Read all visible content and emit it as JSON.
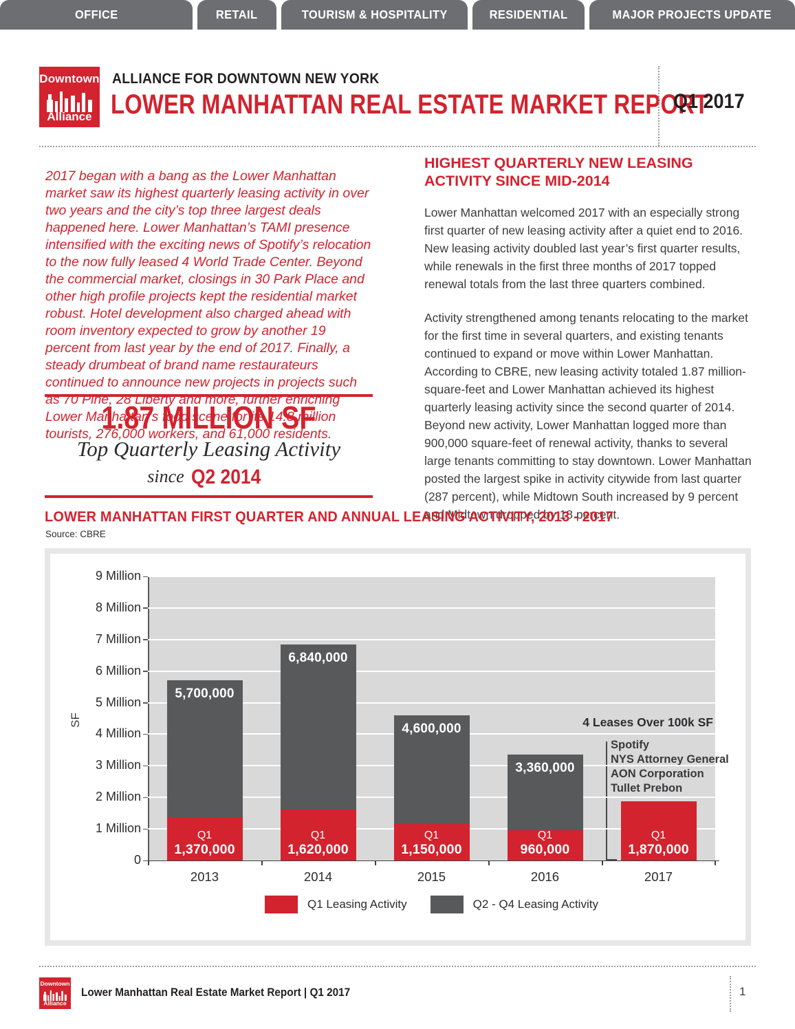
{
  "colors": {
    "brand_red": "#d2232e",
    "bar_gray": "#58595b",
    "nav_gray": "#6d6e71",
    "plot_background": "#d9d9d9"
  },
  "nav": {
    "tabs": [
      {
        "label": "OFFICE"
      },
      {
        "label": "RETAIL"
      },
      {
        "label": "TOURISM & HOSPITALITY"
      },
      {
        "label": "RESIDENTIAL"
      },
      {
        "label": "MAJOR PROJECTS UPDATE"
      }
    ]
  },
  "header": {
    "logo": {
      "line1": "Downtown",
      "line2": "Alliance"
    },
    "org": "ALLIANCE FOR DOWNTOWN NEW YORK",
    "title": "LOWER MANHATTAN REAL ESTATE MARKET REPORT",
    "edition": "Q1 2017"
  },
  "intro": {
    "text": "2017 began with a bang as the Lower Manhattan market saw its highest quarterly leasing activity in over two years and the city’s top three largest deals happened here. Lower Manhattan’s TAMI presence intensified with the exciting news of Spotify’s relocation to the now fully leased 4 World Trade Center. Beyond the commercial market, closings in 30 Park Place and other high profile projects kept the residential market robust. Hotel development also charged ahead with room inventory expected to grow by another 19 percent from last year by the end of 2017. Finally, a steady drumbeat of brand name restaurateurs continued to announce new projects in projects such as 70 Pine, 28 Liberty and more, further enriching Lower Manhattan’s food scene for its 14.8 million tourists, 276,000 workers, and 61,000 residents."
  },
  "callout": {
    "headline": "1.87 MILLION SF",
    "subline": "Top Quarterly Leasing Activity",
    "since_prefix": "since",
    "since_value": "Q2 2014"
  },
  "article": {
    "heading": "HIGHEST QUARTERLY NEW LEASING ACTIVITY SINCE MID-2014",
    "paragraphs": [
      "Lower Manhattan welcomed 2017 with an especially strong first quarter of new leasing activity after a quiet end to 2016. New leasing activity doubled last year’s first quarter results, while renewals in the first three months of 2017 topped renewal totals from the last three quarters combined.",
      "Activity strengthened among tenants relocating to the market for the first time in several quarters, and existing tenants continued to expand or move within Lower Manhattan. According to CBRE, new leasing activity totaled 1.87 million-square-feet and Lower Manhattan achieved its highest quarterly leasing activity since the second quarter of 2014. Beyond new activity, Lower Manhattan logged more than 900,000 square-feet of renewal activity, thanks to several large tenants committing to stay downtown. Lower Manhattan posted the largest spike in activity citywide from last quarter (287 percent), while Midtown South increased by 9 percent and Midtown dropped by 18 percent."
    ]
  },
  "chart": {
    "title": "LOWER MANHATTAN FIRST QUARTER AND ANNUAL LEASING ACTIVITY, 2013 - 2017",
    "source": "Source: CBRE",
    "ylabel": "SF",
    "annotation": {
      "title": "4 Leases Over 100k SF",
      "items": [
        "Spotify",
        "NYS Attorney General",
        "AON Corporation",
        "Tullet Prebon"
      ]
    },
    "legend": [
      {
        "label": "Q1 Leasing Activity",
        "color": "#d2232e"
      },
      {
        "label": "Q2 - Q4 Leasing Activity",
        "color": "#58595b"
      }
    ]
  },
  "chart_data": {
    "type": "bar",
    "stacked": true,
    "title": "LOWER MANHATTAN FIRST QUARTER AND ANNUAL LEASING ACTIVITY, 2013 - 2017",
    "xlabel": "",
    "ylabel": "SF",
    "ylim": [
      0,
      9000000
    ],
    "grid": true,
    "legend_position": "bottom",
    "categories": [
      "2013",
      "2014",
      "2015",
      "2016",
      "2017"
    ],
    "series": [
      {
        "name": "Q1 Leasing Activity",
        "color": "#d2232e",
        "values": [
          1370000,
          1620000,
          1150000,
          960000,
          1870000
        ]
      },
      {
        "name": "Q2 - Q4 Leasing Activity",
        "color": "#58595b",
        "values": [
          4330000,
          5220000,
          3450000,
          2400000,
          0
        ]
      }
    ],
    "totals": [
      5700000,
      6840000,
      4600000,
      3360000,
      1870000
    ],
    "total_labels": [
      "5,700,000",
      "6,840,000",
      "4,600,000",
      "3,360,000",
      ""
    ],
    "q1_sublabel": "Q1",
    "q1_labels": [
      "1,370,000",
      "1,620,000",
      "1,150,000",
      "960,000",
      "1,870,000"
    ],
    "yticks": [
      "0",
      "1 Million",
      "2 Million",
      "3 Million",
      "4 Million",
      "5 Million",
      "6 Million",
      "7 Million",
      "8 Million",
      "9 Million"
    ]
  },
  "footer": {
    "text": "Lower Manhattan Real Estate Market Report | Q1 2017",
    "page": "1"
  }
}
